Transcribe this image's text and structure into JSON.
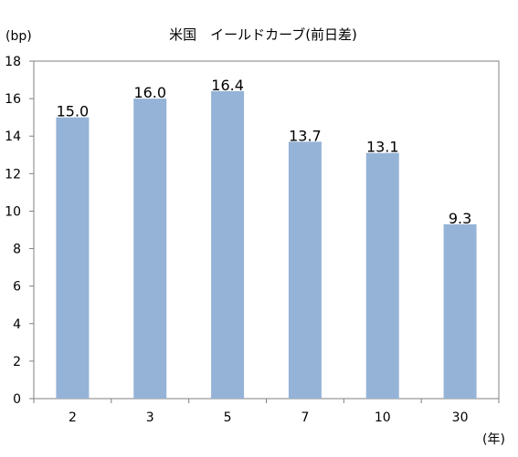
{
  "chart_data": {
    "type": "bar",
    "title": "米国　イールドカーブ(前日差)",
    "ylabel": "(bp)",
    "xlabel": "(年)",
    "categories": [
      "2",
      "3",
      "5",
      "7",
      "10",
      "30"
    ],
    "values": [
      15.0,
      16.0,
      16.4,
      13.7,
      13.1,
      9.3
    ],
    "data_labels": [
      "15.0",
      "16.0",
      "16.4",
      "13.7",
      "13.1",
      "9.3"
    ],
    "ylim": [
      0,
      18
    ],
    "yticks": [
      0,
      2,
      4,
      6,
      8,
      10,
      12,
      14,
      16,
      18
    ],
    "grid": false,
    "legend": "none",
    "bar_color": "#95b3d7"
  }
}
